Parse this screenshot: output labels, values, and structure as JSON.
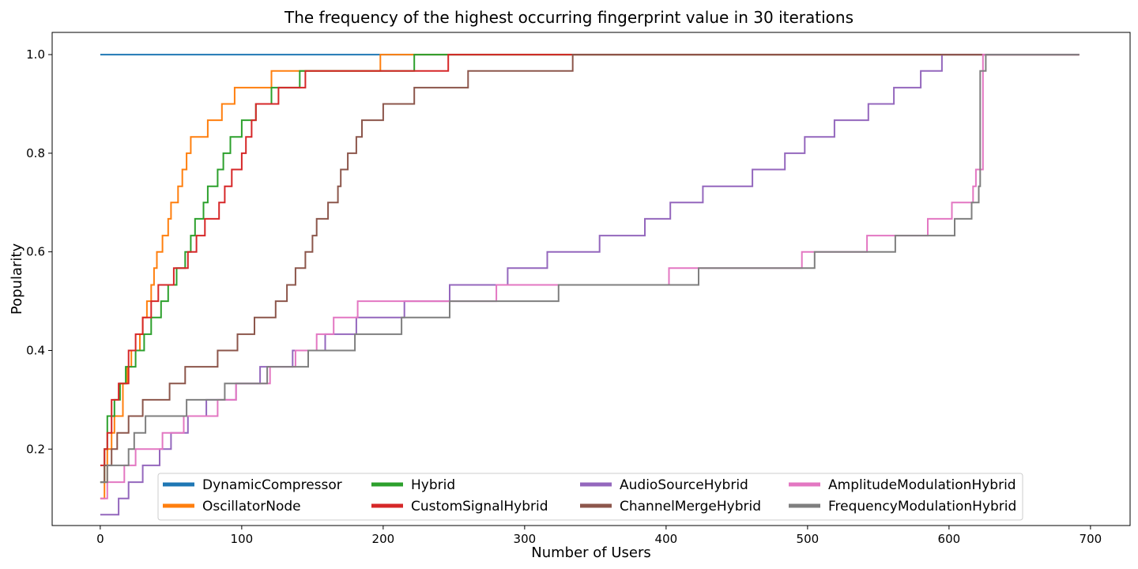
{
  "chart_data": {
    "type": "line",
    "title": "The frequency of the highest occurring fingerprint value in 30 iterations",
    "xlabel": "Number of Users",
    "ylabel": "Popularity",
    "xlim": [
      -34,
      728
    ],
    "ylim": [
      0.045,
      1.045
    ],
    "xticks": [
      0,
      100,
      200,
      300,
      400,
      500,
      600,
      700
    ],
    "yticks": [
      0.2,
      0.4,
      0.6,
      0.8,
      1.0
    ],
    "grid": false,
    "legend_position": "bottom-center",
    "legend_columns": 4,
    "series": [
      {
        "name": "DynamicCompressor",
        "color": "#1f77b4",
        "step": true,
        "points": [
          [
            0,
            1.0
          ],
          [
            692,
            1.0
          ]
        ]
      },
      {
        "name": "OscillatorNode",
        "color": "#ff7f0e",
        "step": true,
        "points": [
          [
            0,
            0.1
          ],
          [
            3,
            0.133
          ],
          [
            5,
            0.2
          ],
          [
            8,
            0.233
          ],
          [
            10,
            0.267
          ],
          [
            16,
            0.333
          ],
          [
            19,
            0.367
          ],
          [
            22,
            0.4
          ],
          [
            28,
            0.433
          ],
          [
            30,
            0.467
          ],
          [
            33,
            0.5
          ],
          [
            36,
            0.533
          ],
          [
            38,
            0.567
          ],
          [
            40,
            0.6
          ],
          [
            44,
            0.633
          ],
          [
            48,
            0.667
          ],
          [
            50,
            0.7
          ],
          [
            55,
            0.733
          ],
          [
            58,
            0.767
          ],
          [
            61,
            0.8
          ],
          [
            64,
            0.833
          ],
          [
            76,
            0.867
          ],
          [
            86,
            0.9
          ],
          [
            95,
            0.933
          ],
          [
            121,
            0.967
          ],
          [
            198,
            1.0
          ],
          [
            692,
            1.0
          ]
        ]
      },
      {
        "name": "Hybrid",
        "color": "#2ca02c",
        "step": true,
        "points": [
          [
            0,
            0.133
          ],
          [
            3,
            0.2
          ],
          [
            5,
            0.267
          ],
          [
            10,
            0.3
          ],
          [
            14,
            0.333
          ],
          [
            18,
            0.367
          ],
          [
            25,
            0.4
          ],
          [
            31,
            0.433
          ],
          [
            36,
            0.467
          ],
          [
            43,
            0.5
          ],
          [
            48,
            0.533
          ],
          [
            54,
            0.567
          ],
          [
            60,
            0.6
          ],
          [
            64,
            0.633
          ],
          [
            67,
            0.667
          ],
          [
            73,
            0.7
          ],
          [
            76,
            0.733
          ],
          [
            83,
            0.767
          ],
          [
            87,
            0.8
          ],
          [
            92,
            0.833
          ],
          [
            100,
            0.867
          ],
          [
            110,
            0.9
          ],
          [
            121,
            0.933
          ],
          [
            141,
            0.967
          ],
          [
            222,
            1.0
          ],
          [
            692,
            1.0
          ]
        ]
      },
      {
        "name": "CustomSignalHybrid",
        "color": "#d62728",
        "step": true,
        "points": [
          [
            0,
            0.167
          ],
          [
            3,
            0.2
          ],
          [
            5,
            0.233
          ],
          [
            8,
            0.3
          ],
          [
            13,
            0.333
          ],
          [
            20,
            0.4
          ],
          [
            25,
            0.433
          ],
          [
            30,
            0.467
          ],
          [
            36,
            0.5
          ],
          [
            41,
            0.533
          ],
          [
            52,
            0.567
          ],
          [
            62,
            0.6
          ],
          [
            68,
            0.633
          ],
          [
            74,
            0.667
          ],
          [
            84,
            0.7
          ],
          [
            88,
            0.733
          ],
          [
            93,
            0.767
          ],
          [
            100,
            0.8
          ],
          [
            103,
            0.833
          ],
          [
            107,
            0.867
          ],
          [
            110,
            0.9
          ],
          [
            126,
            0.933
          ],
          [
            145,
            0.967
          ],
          [
            246,
            1.0
          ],
          [
            692,
            1.0
          ]
        ]
      },
      {
        "name": "AudioSourceHybrid",
        "color": "#9467bd",
        "step": true,
        "points": [
          [
            0,
            0.067
          ],
          [
            13,
            0.1
          ],
          [
            20,
            0.133
          ],
          [
            30,
            0.167
          ],
          [
            42,
            0.2
          ],
          [
            50,
            0.233
          ],
          [
            62,
            0.267
          ],
          [
            75,
            0.3
          ],
          [
            96,
            0.333
          ],
          [
            113,
            0.367
          ],
          [
            136,
            0.4
          ],
          [
            159,
            0.433
          ],
          [
            181,
            0.467
          ],
          [
            215,
            0.5
          ],
          [
            247,
            0.533
          ],
          [
            288,
            0.567
          ],
          [
            316,
            0.6
          ],
          [
            353,
            0.633
          ],
          [
            385,
            0.667
          ],
          [
            403,
            0.7
          ],
          [
            426,
            0.733
          ],
          [
            461,
            0.767
          ],
          [
            484,
            0.8
          ],
          [
            498,
            0.833
          ],
          [
            519,
            0.867
          ],
          [
            543,
            0.9
          ],
          [
            561,
            0.933
          ],
          [
            580,
            0.967
          ],
          [
            595,
            1.0
          ],
          [
            692,
            1.0
          ]
        ]
      },
      {
        "name": "ChannelMergeHybrid",
        "color": "#8c564b",
        "step": true,
        "points": [
          [
            0,
            0.133
          ],
          [
            3,
            0.167
          ],
          [
            8,
            0.2
          ],
          [
            12,
            0.233
          ],
          [
            20,
            0.267
          ],
          [
            30,
            0.3
          ],
          [
            49,
            0.333
          ],
          [
            60,
            0.367
          ],
          [
            83,
            0.4
          ],
          [
            97,
            0.433
          ],
          [
            109,
            0.467
          ],
          [
            124,
            0.5
          ],
          [
            132,
            0.533
          ],
          [
            138,
            0.567
          ],
          [
            145,
            0.6
          ],
          [
            150,
            0.633
          ],
          [
            153,
            0.667
          ],
          [
            161,
            0.7
          ],
          [
            168,
            0.733
          ],
          [
            170,
            0.767
          ],
          [
            175,
            0.8
          ],
          [
            181,
            0.833
          ],
          [
            185,
            0.867
          ],
          [
            200,
            0.9
          ],
          [
            222,
            0.933
          ],
          [
            260,
            0.967
          ],
          [
            334,
            1.0
          ],
          [
            692,
            1.0
          ]
        ]
      },
      {
        "name": "AmplitudeModulationHybrid",
        "color": "#e377c2",
        "step": true,
        "points": [
          [
            0,
            0.1
          ],
          [
            5,
            0.133
          ],
          [
            17,
            0.167
          ],
          [
            25,
            0.2
          ],
          [
            44,
            0.233
          ],
          [
            59,
            0.267
          ],
          [
            83,
            0.3
          ],
          [
            96,
            0.333
          ],
          [
            120,
            0.367
          ],
          [
            138,
            0.4
          ],
          [
            153,
            0.433
          ],
          [
            165,
            0.467
          ],
          [
            182,
            0.5
          ],
          [
            280,
            0.533
          ],
          [
            402,
            0.567
          ],
          [
            496,
            0.6
          ],
          [
            542,
            0.633
          ],
          [
            585,
            0.667
          ],
          [
            602,
            0.7
          ],
          [
            617,
            0.733
          ],
          [
            619,
            0.767
          ],
          [
            624,
            1.0
          ],
          [
            692,
            1.0
          ]
        ]
      },
      {
        "name": "FrequencyModulationHybrid",
        "color": "#7f7f7f",
        "step": true,
        "points": [
          [
            0,
            0.133
          ],
          [
            5,
            0.167
          ],
          [
            20,
            0.2
          ],
          [
            24,
            0.233
          ],
          [
            32,
            0.267
          ],
          [
            61,
            0.3
          ],
          [
            88,
            0.333
          ],
          [
            118,
            0.367
          ],
          [
            147,
            0.4
          ],
          [
            180,
            0.433
          ],
          [
            213,
            0.467
          ],
          [
            247,
            0.5
          ],
          [
            324,
            0.533
          ],
          [
            423,
            0.567
          ],
          [
            505,
            0.6
          ],
          [
            562,
            0.633
          ],
          [
            604,
            0.667
          ],
          [
            616,
            0.7
          ],
          [
            621,
            0.733
          ],
          [
            622,
            0.967
          ],
          [
            626,
            1.0
          ],
          [
            692,
            1.0
          ]
        ]
      }
    ]
  }
}
